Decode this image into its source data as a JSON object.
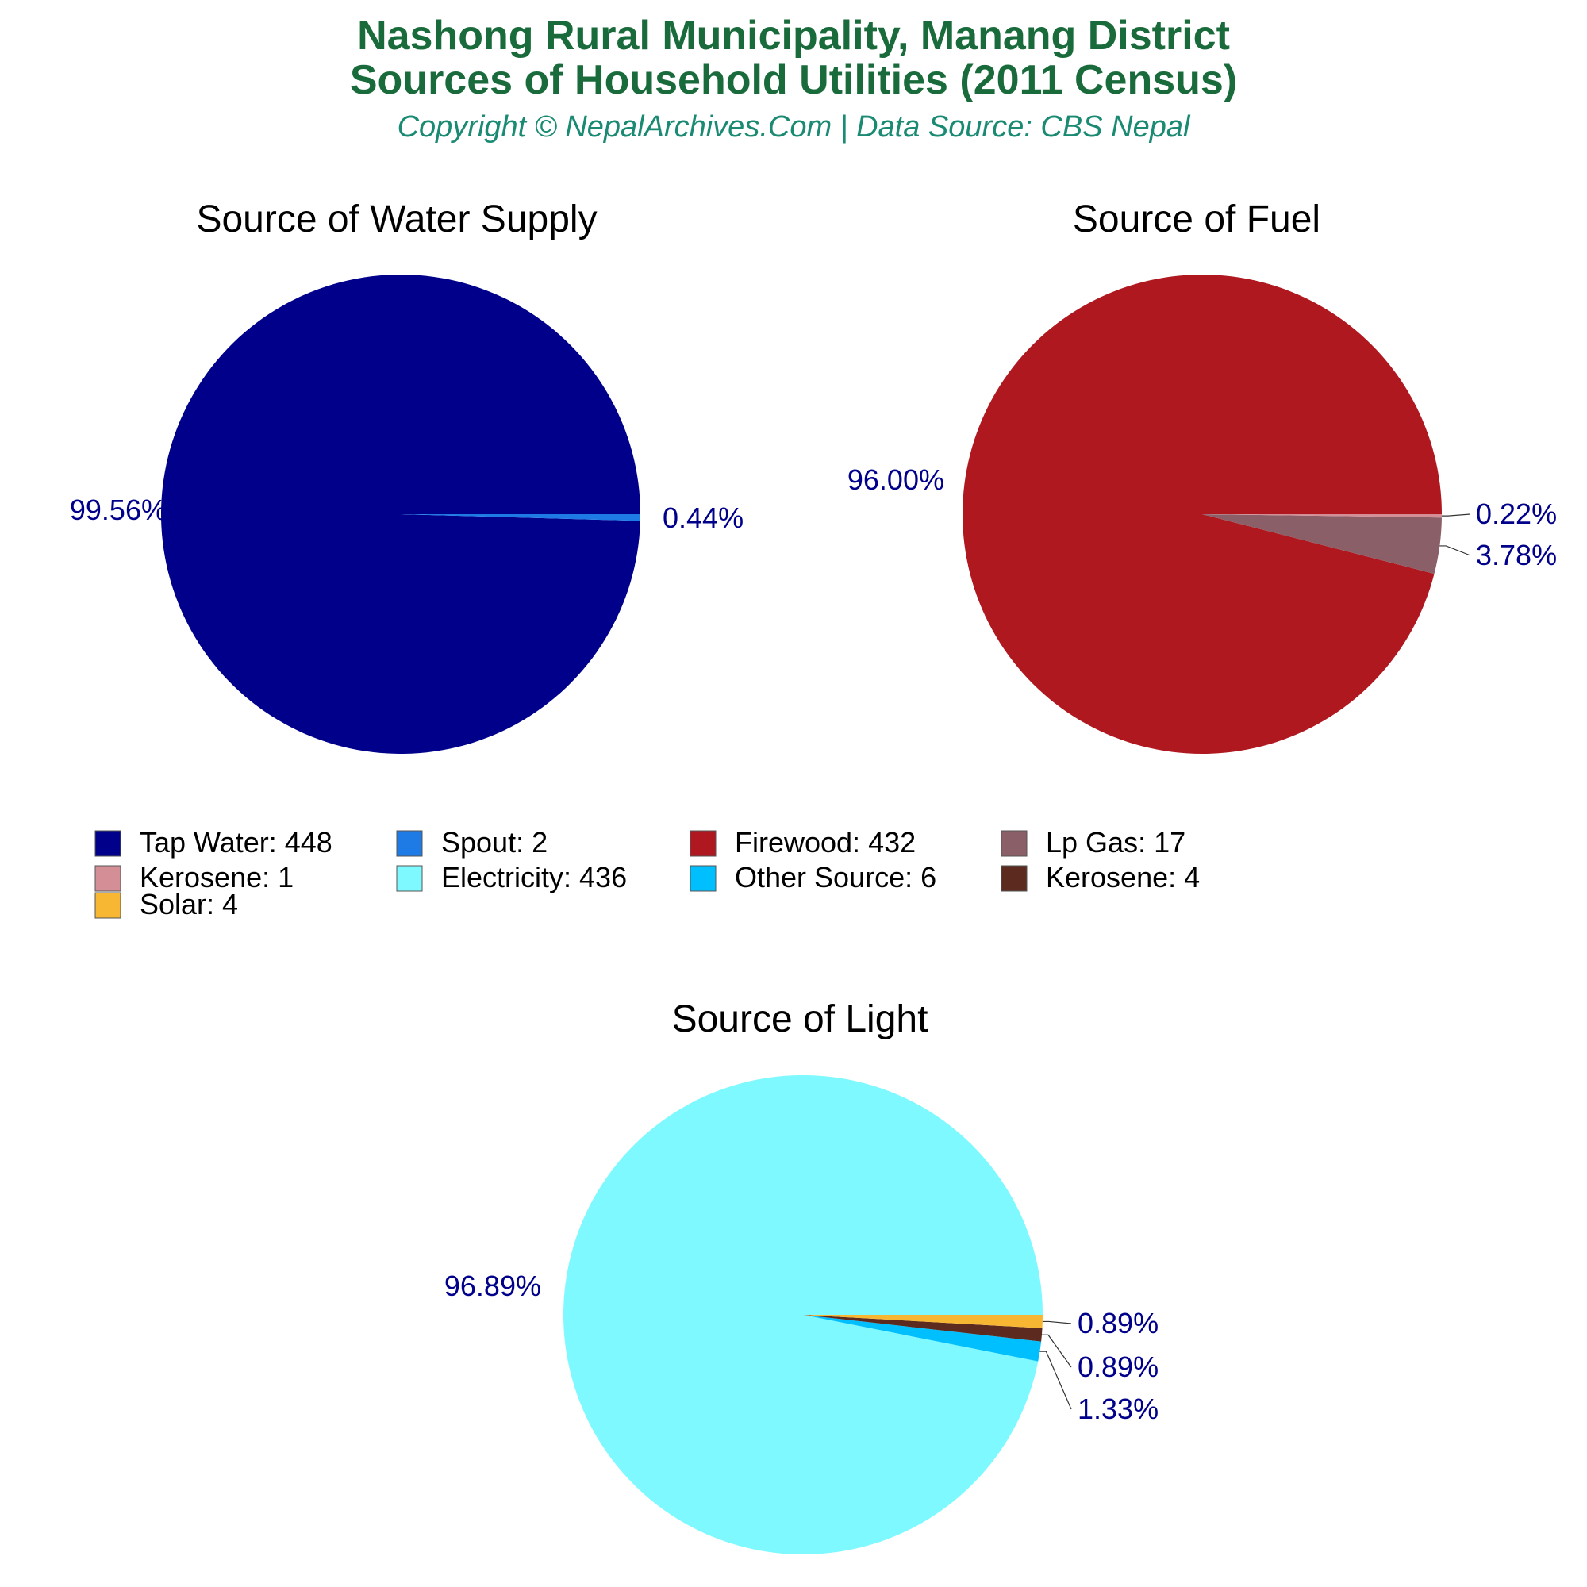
{
  "header": {
    "title_line1": "Nashong Rural Municipality, Manang District",
    "title_line2": "Sources of Household Utilities (2011 Census)",
    "subtitle": "Copyright © NepalArchives.Com | Data Source: CBS Nepal"
  },
  "chart_data": [
    {
      "type": "pie",
      "title": "Source of Water Supply",
      "categories": [
        "Tap Water",
        "Spout"
      ],
      "values": [
        448,
        2
      ],
      "colors": [
        "#00008b",
        "#1e7be6"
      ],
      "percent_labels": [
        "99.56%",
        "0.44%"
      ]
    },
    {
      "type": "pie",
      "title": "Source of Fuel",
      "categories": [
        "Firewood",
        "Lp Gas",
        "Kerosene"
      ],
      "values": [
        432,
        17,
        1
      ],
      "colors": [
        "#b01820",
        "#8b5f68",
        "#d48f96"
      ],
      "percent_labels": [
        "96.00%",
        "3.78%",
        "0.22%"
      ]
    },
    {
      "type": "pie",
      "title": "Source of Light",
      "categories": [
        "Electricity",
        "Other Source",
        "Kerosene",
        "Solar"
      ],
      "values": [
        436,
        6,
        4,
        4
      ],
      "colors": [
        "#7ef9ff",
        "#00bfff",
        "#5c2a1e",
        "#f7b733"
      ],
      "percent_labels": [
        "96.89%",
        "1.33%",
        "0.89%",
        "0.89%"
      ]
    }
  ],
  "legend": [
    {
      "label": "Tap Water: 448",
      "color": "#00008b"
    },
    {
      "label": "Spout: 2",
      "color": "#1e7be6"
    },
    {
      "label": "Firewood: 432",
      "color": "#b01820"
    },
    {
      "label": "Lp Gas: 17",
      "color": "#8b5f68"
    },
    {
      "label": "Kerosene: 1",
      "color": "#d48f96"
    },
    {
      "label": "Electricity: 436",
      "color": "#7ef9ff"
    },
    {
      "label": "Other Source: 6",
      "color": "#00bfff"
    },
    {
      "label": "Kerosene: 4",
      "color": "#5c2a1e"
    },
    {
      "label": "Solar: 4",
      "color": "#f7b733"
    }
  ]
}
